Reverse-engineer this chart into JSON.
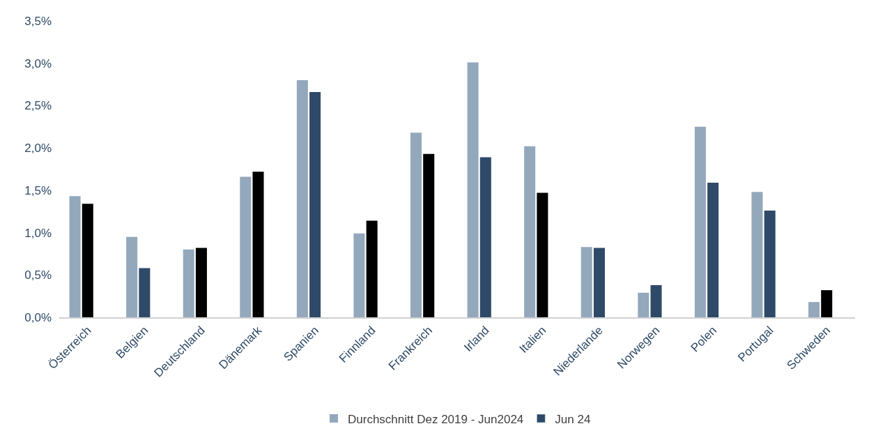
{
  "chart_data": {
    "type": "bar",
    "categories": [
      "Österreich",
      "Belgien",
      "Deutschland",
      "Dänemark",
      "Spanien",
      "Finnland",
      "Frankreich",
      "Irland",
      "Italien",
      "Niederlande",
      "Norwegen",
      "Polen",
      "Portugal",
      "Schweden"
    ],
    "series": [
      {
        "name": "Durchschnitt Dez 2019 - Jun2024",
        "color": "#94a8bc",
        "values": [
          1.43,
          0.95,
          0.8,
          1.66,
          2.8,
          0.99,
          2.18,
          3.01,
          2.02,
          0.83,
          0.29,
          2.25,
          1.48,
          0.18
        ]
      },
      {
        "name": "Jun 24",
        "color": "#2e4a68",
        "colors": [
          "#000000",
          "#2e4a68",
          "#000000",
          "#000000",
          "#2e4a68",
          "#000000",
          "#000000",
          "#2e4a68",
          "#000000",
          "#2e4a68",
          "#2e4a68",
          "#2e4a68",
          "#2e4a68",
          "#000000"
        ],
        "values": [
          1.34,
          0.58,
          0.82,
          1.72,
          2.66,
          1.14,
          1.93,
          1.89,
          1.47,
          0.82,
          0.38,
          1.59,
          1.26,
          0.32
        ]
      }
    ],
    "ylim": [
      0,
      3.5
    ],
    "yticks": [
      {
        "value": 0,
        "label": "0,0%"
      },
      {
        "value": 0.5,
        "label": "0,5%"
      },
      {
        "value": 1,
        "label": "1,0%"
      },
      {
        "value": 1.5,
        "label": "1,5%"
      },
      {
        "value": 2,
        "label": "2,0%"
      },
      {
        "value": 2.5,
        "label": "2,5%"
      },
      {
        "value": 3,
        "label": "3,0%"
      },
      {
        "value": 3.5,
        "label": "3,5%"
      }
    ],
    "grid": false,
    "legend": "bottom"
  }
}
